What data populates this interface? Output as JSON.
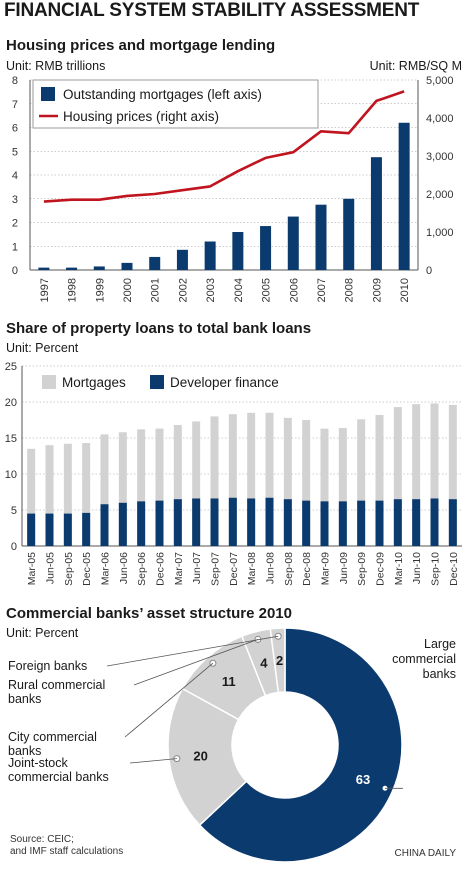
{
  "page_title": "FINANCIAL SYSTEM STABILITY ASSESSMENT",
  "colors": {
    "navy": "#0b3a6e",
    "red": "#c0141e",
    "grey": "#d2d2d2",
    "grid": "#9a9a9a"
  },
  "footer": {
    "source_line1": "Source: CEIC;",
    "source_line2": "and IMF staff calculations",
    "credit": "CHINA DAILY"
  },
  "chart_data": [
    {
      "type": "bar",
      "title": "Housing prices and mortgage lending",
      "unit_left": "Unit: RMB trillions",
      "unit_right": "Unit: RMB/SQ M",
      "categories": [
        "1997",
        "1998",
        "1999",
        "2000",
        "2001",
        "2002",
        "2003",
        "2004",
        "2005",
        "2006",
        "2007",
        "2008",
        "2009",
        "2010"
      ],
      "ylim_left": [
        0,
        8
      ],
      "yticks_left": [
        "0",
        "1",
        "2",
        "3",
        "4",
        "5",
        "6",
        "7",
        "8"
      ],
      "ylim_right": [
        0,
        5000
      ],
      "yticks_right": [
        "0",
        "1,000",
        "2,000",
        "3,000",
        "4,000",
        "5,000"
      ],
      "grid": true,
      "legend_position": "top-left",
      "series": [
        {
          "name": "Outstanding mortgages (left axis)",
          "type": "bar",
          "axis": "left",
          "values": [
            0.1,
            0.1,
            0.15,
            0.3,
            0.55,
            0.85,
            1.2,
            1.6,
            1.85,
            2.25,
            2.75,
            3.0,
            4.75,
            6.2
          ]
        },
        {
          "name": "Housing prices (right axis)",
          "type": "line",
          "axis": "right",
          "values": [
            1800,
            1850,
            1850,
            1950,
            2000,
            2100,
            2200,
            2600,
            2950,
            3100,
            3650,
            3600,
            4450,
            4700
          ]
        }
      ]
    },
    {
      "type": "bar",
      "title": "Share of property loans to total bank loans",
      "unit": "Unit: Percent",
      "categories": [
        "Mar-05",
        "Jun-05",
        "Sep-05",
        "Dec-05",
        "Mar-06",
        "Jun-06",
        "Sep-06",
        "Dec-06",
        "Mar-07",
        "Jun-07",
        "Sep-07",
        "Dec-07",
        "Mar-08",
        "Jun-08",
        "Sep-08",
        "Dec-08",
        "Mar-09",
        "Jun-09",
        "Sep-09",
        "Dec-09",
        "Mar-10",
        "Jun-10",
        "Sep-10",
        "Dec-10"
      ],
      "ylim": [
        0,
        25
      ],
      "yticks": [
        "0",
        "5",
        "10",
        "15",
        "20",
        "25"
      ],
      "grid": true,
      "legend_position": "top",
      "series": [
        {
          "name": "Mortgages",
          "type": "bar",
          "role": "total",
          "values": [
            13.5,
            14.0,
            14.2,
            14.3,
            15.5,
            15.8,
            16.2,
            16.3,
            16.8,
            17.3,
            18.0,
            18.3,
            18.5,
            18.5,
            17.8,
            17.5,
            16.3,
            16.4,
            17.6,
            18.2,
            19.3,
            19.7,
            19.8,
            19.6
          ]
        },
        {
          "name": "Developer finance",
          "type": "bar",
          "role": "overlay",
          "values": [
            4.5,
            4.5,
            4.5,
            4.6,
            5.8,
            6.0,
            6.2,
            6.3,
            6.5,
            6.6,
            6.6,
            6.7,
            6.6,
            6.7,
            6.5,
            6.3,
            6.2,
            6.2,
            6.3,
            6.3,
            6.5,
            6.5,
            6.6,
            6.5
          ]
        }
      ]
    },
    {
      "type": "pie",
      "title": "Commercial banks’ asset structure 2010",
      "unit": "Unit: Percent",
      "slices": [
        {
          "label": "Large commercial banks",
          "label_lines": [
            "Large",
            "commercial",
            "banks"
          ],
          "value": 63,
          "text": "63"
        },
        {
          "label": "Joint-stock commercial banks",
          "label_lines": [
            "Joint-stock",
            "commercial banks"
          ],
          "value": 20,
          "text": "20"
        },
        {
          "label": "City commercial banks",
          "label_lines": [
            "City commercial",
            "banks"
          ],
          "value": 11,
          "text": "11"
        },
        {
          "label": "Rural commercial banks",
          "label_lines": [
            "Rural commercial",
            "banks"
          ],
          "value": 4,
          "text": "4"
        },
        {
          "label": "Foreign banks",
          "label_lines": [
            "Foreign banks"
          ],
          "value": 2,
          "text": "2"
        }
      ]
    }
  ]
}
